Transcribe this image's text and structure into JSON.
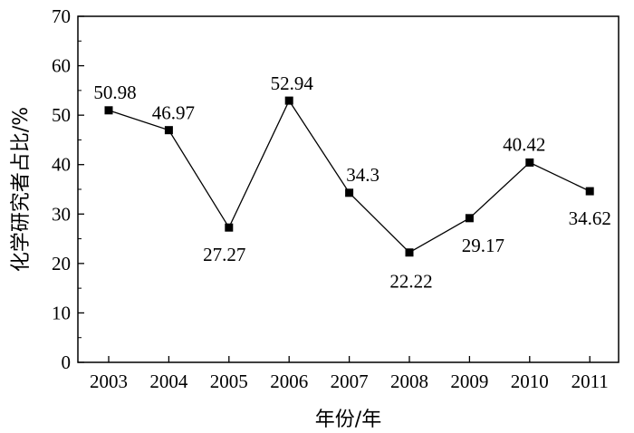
{
  "chart_data": {
    "type": "line",
    "xlabel": "年份/年",
    "ylabel": "化学研究者占比/%",
    "ylim": [
      0,
      70
    ],
    "yticks": [
      0,
      10,
      20,
      30,
      40,
      50,
      60,
      70
    ],
    "grid": false,
    "legend": "none",
    "marker": "square",
    "line_color": "#000000",
    "categories": [
      "2003",
      "2004",
      "2005",
      "2006",
      "2007",
      "2008",
      "2009",
      "2010",
      "2011"
    ],
    "values": [
      50.98,
      46.97,
      27.27,
      52.94,
      34.3,
      22.22,
      29.17,
      40.42,
      34.62
    ],
    "data_labels": [
      "50.98",
      "46.97",
      "27.27",
      "52.94",
      "34.3",
      "22.22",
      "29.17",
      "40.42",
      "34.62"
    ]
  }
}
